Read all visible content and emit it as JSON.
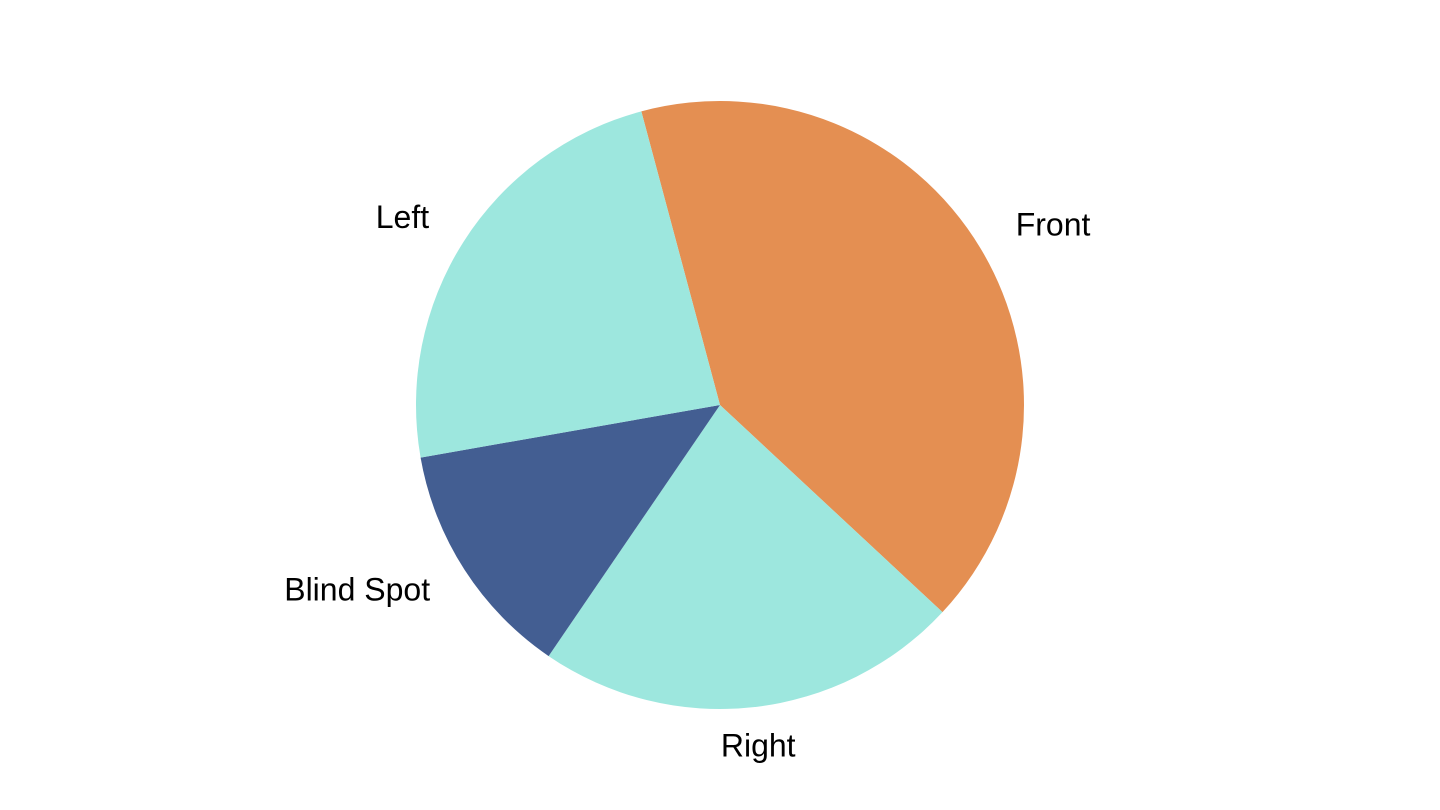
{
  "chart_data": {
    "type": "pie",
    "title": "",
    "start_angle_deg": -105,
    "slices": [
      {
        "label": "Front",
        "value": 41.1,
        "color": "#e48f52"
      },
      {
        "label": "Right",
        "value": 22.6,
        "color": "#9de7de"
      },
      {
        "label": "Blind Spot",
        "value": 12.7,
        "color": "#435e92"
      },
      {
        "label": "Left",
        "value": 23.6,
        "color": "#9de7de"
      }
    ],
    "legend": "none"
  }
}
